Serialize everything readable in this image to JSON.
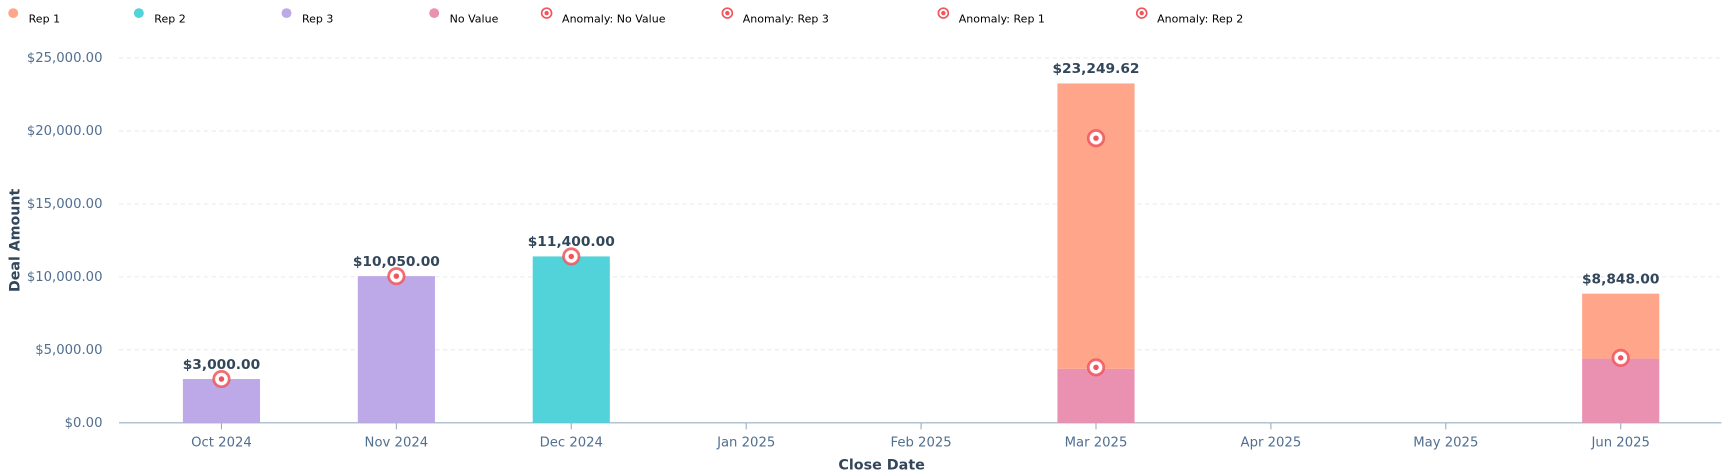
{
  "chart_data": {
    "type": "stacked-bar",
    "x_label": "Close Date",
    "y_label": "Deal Amount",
    "categories": [
      "Oct 2024",
      "Nov 2024",
      "Dec 2024",
      "Jan 2025",
      "Feb 2025",
      "Mar 2025",
      "Apr 2025",
      "May 2025",
      "Jun 2025"
    ],
    "series": [
      {
        "name": "Rep 1",
        "color": "#fea58a",
        "values": [
          null,
          null,
          null,
          null,
          null,
          19549.62,
          null,
          null,
          4448
        ]
      },
      {
        "name": "Rep 2",
        "color": "#51d3d9",
        "values": [
          null,
          null,
          11400,
          null,
          null,
          null,
          null,
          null,
          null
        ]
      },
      {
        "name": "Rep 3",
        "color": "#bda8e8",
        "values": [
          3000,
          10050,
          null,
          null,
          null,
          null,
          null,
          null,
          null
        ]
      },
      {
        "name": "No Value",
        "color": "#ea90b1",
        "values": [
          null,
          null,
          null,
          null,
          null,
          3700,
          null,
          null,
          4400
        ]
      }
    ],
    "anomalies": [
      {
        "name": "Anomaly: No Value",
        "color": "#f2545b",
        "values": [
          null,
          null,
          null,
          null,
          null,
          3800,
          null,
          null,
          4450
        ]
      },
      {
        "name": "Anomaly:  Rep 3",
        "color": "#f2545b",
        "values": [
          3000,
          10050,
          null,
          null,
          null,
          null,
          null,
          null,
          null
        ]
      },
      {
        "name": "Anomaly:  Rep 1",
        "color": "#f2545b",
        "values": [
          null,
          null,
          null,
          null,
          null,
          19500,
          null,
          null,
          null
        ]
      },
      {
        "name": "Anomaly: Rep 2",
        "color": "#f2545b",
        "values": [
          null,
          null,
          11400,
          null,
          null,
          null,
          null,
          null,
          null
        ]
      }
    ],
    "totals": {
      "values": [
        3000,
        10050,
        11400,
        null,
        null,
        23249.62,
        null,
        null,
        8848
      ],
      "value_labels": [
        "$3,000.00",
        "$10,050.00",
        "$11,400.00",
        null,
        null,
        "$23,249.62",
        null,
        null,
        "$8,848.00"
      ]
    },
    "ylim": [
      0,
      25000
    ],
    "yticks": [
      {
        "value": 0,
        "label": "$0.00"
      },
      {
        "value": 5000,
        "label": "$5,000.00"
      },
      {
        "value": 10000,
        "label": "$10,000.00"
      },
      {
        "value": 15000,
        "label": "$15,000.00"
      },
      {
        "value": 20000,
        "label": "$20,000.00"
      },
      {
        "value": 25000,
        "label": "$25,000.00"
      }
    ],
    "grid": true
  }
}
